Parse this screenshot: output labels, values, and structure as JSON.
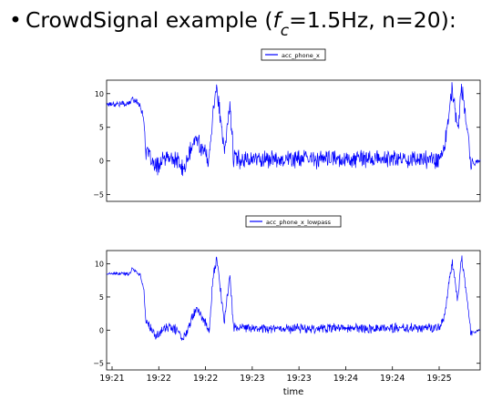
{
  "slide": {
    "bullet": "•",
    "heading_prefix": "CrowdSignal example (",
    "heading_f": "f",
    "heading_sub": "c",
    "heading_suffix": "=1.5Hz, n=20):"
  },
  "chart_data": [
    {
      "type": "line",
      "legend": [
        "acc_phone_x"
      ],
      "legend_position": "top-center",
      "series": [
        {
          "name": "acc_phone_x",
          "color": "#0000ff",
          "noise": 1.0
        }
      ],
      "ylim": [
        -6,
        12
      ],
      "yticks": [
        -5,
        0,
        5,
        10
      ],
      "ytick_labels": [
        "−5",
        "0",
        "5",
        "10"
      ],
      "xticks": [],
      "xlabel": ""
    },
    {
      "type": "line",
      "legend": [
        "acc_phone_x_lowpass"
      ],
      "legend_position": "top-center",
      "series": [
        {
          "name": "acc_phone_x_lowpass",
          "color": "#0000ff",
          "noise": 0.55
        }
      ],
      "ylim": [
        -6,
        12
      ],
      "yticks": [
        -5,
        0,
        5,
        10
      ],
      "ytick_labels": [
        "−5",
        "0",
        "5",
        "10"
      ],
      "xticks": [
        "19:21",
        "19:22",
        "19:22",
        "19:23",
        "19:23",
        "19:24",
        "19:24",
        "19:25"
      ],
      "xlabel": "time"
    }
  ],
  "signal_shape": [
    [
      0.0,
      8.5
    ],
    [
      0.06,
      8.5
    ],
    [
      0.07,
      9.3
    ],
    [
      0.09,
      8.3
    ],
    [
      0.1,
      6.0
    ],
    [
      0.105,
      1.5
    ],
    [
      0.13,
      -1.0
    ],
    [
      0.16,
      0.5
    ],
    [
      0.19,
      0.0
    ],
    [
      0.205,
      -1.5
    ],
    [
      0.225,
      1.5
    ],
    [
      0.24,
      3.5
    ],
    [
      0.26,
      1.5
    ],
    [
      0.275,
      0.0
    ],
    [
      0.285,
      8.0
    ],
    [
      0.295,
      11.0
    ],
    [
      0.305,
      6.0
    ],
    [
      0.315,
      1.0
    ],
    [
      0.33,
      8.5
    ],
    [
      0.34,
      0.5
    ],
    [
      0.35,
      0.3
    ],
    [
      0.89,
      0.3
    ],
    [
      0.905,
      2.0
    ],
    [
      0.915,
      6.5
    ],
    [
      0.925,
      10.5
    ],
    [
      0.94,
      4.5
    ],
    [
      0.95,
      11.0
    ],
    [
      0.965,
      5.0
    ],
    [
      0.975,
      -0.5
    ],
    [
      1.0,
      0.0
    ]
  ]
}
